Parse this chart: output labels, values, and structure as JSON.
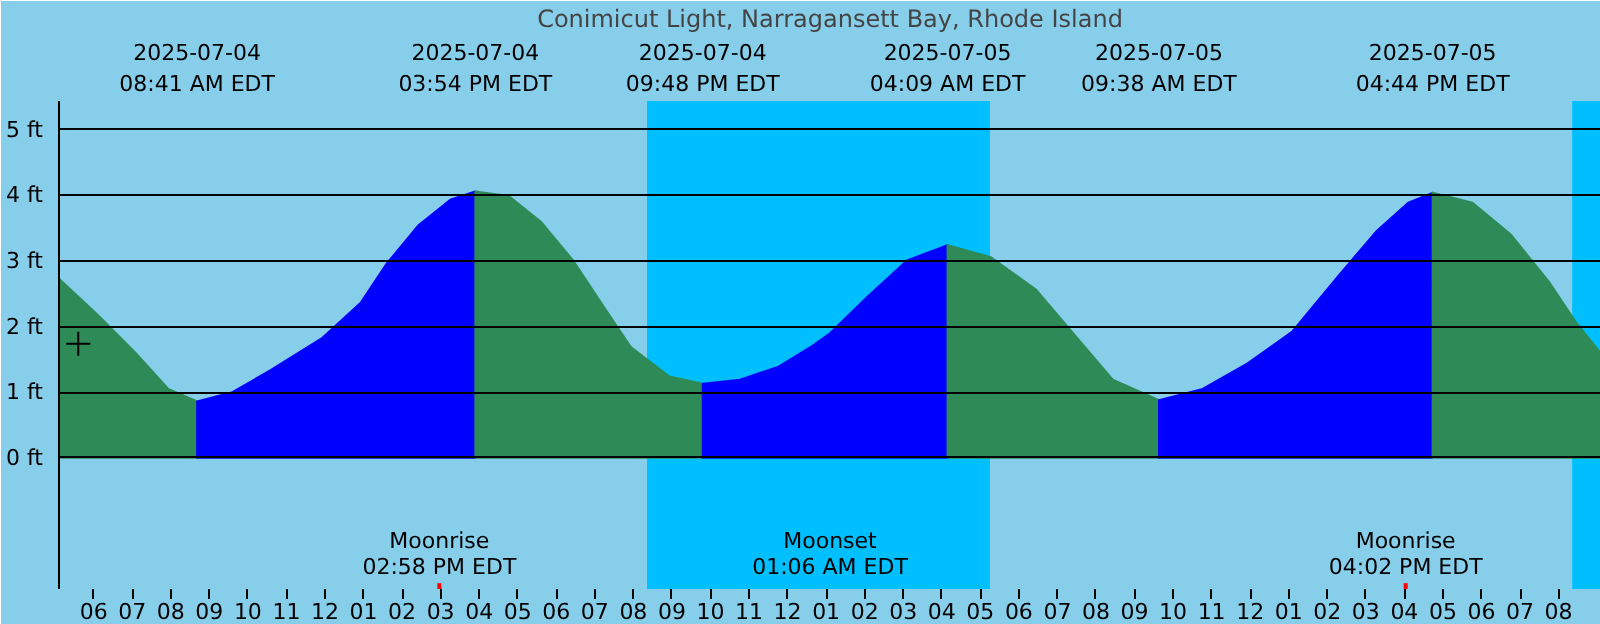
{
  "chart_data": {
    "type": "area",
    "title": "Conimicut Light, Narragansett Bay, Rhode Island",
    "xlim": [
      "2025-07-04T05:06",
      "2025-07-05T21:06"
    ],
    "ylim": [
      -2,
      5.44
    ],
    "x2lim": [
      "2025-07-04T05:06",
      "2025-07-05T21:06"
    ],
    "x2ticks": [
      {
        "value": "2025-07-04T08:41",
        "label": "2025-07-04\n08:41 AM EDT"
      },
      {
        "value": "2025-07-04T15:54",
        "label": "2025-07-04\n03:54 PM EDT"
      },
      {
        "value": "2025-07-04T21:48",
        "label": "2025-07-04\n09:48 PM EDT"
      },
      {
        "value": "2025-07-05T04:09",
        "label": "2025-07-05\n04:09 AM EDT"
      },
      {
        "value": "2025-07-05T09:38",
        "label": "2025-07-05\n09:38 AM EDT"
      },
      {
        "value": "2025-07-05T16:44",
        "label": "2025-07-05\n04:44 PM EDT"
      }
    ],
    "xticks": [
      {
        "value": "2025-07-04T06:00",
        "label": "06"
      },
      {
        "value": "2025-07-04T07:00",
        "label": "07"
      },
      {
        "value": "2025-07-04T08:00",
        "label": "08"
      },
      {
        "value": "2025-07-04T09:00",
        "label": "09"
      },
      {
        "value": "2025-07-04T10:00",
        "label": "10"
      },
      {
        "value": "2025-07-04T11:00",
        "label": "11"
      },
      {
        "value": "2025-07-04T12:00",
        "label": "12"
      },
      {
        "value": "2025-07-04T13:00",
        "label": "01"
      },
      {
        "value": "2025-07-04T14:00",
        "label": "02"
      },
      {
        "value": "2025-07-04T15:00",
        "label": "03"
      },
      {
        "value": "2025-07-04T16:00",
        "label": "04"
      },
      {
        "value": "2025-07-04T17:00",
        "label": "05"
      },
      {
        "value": "2025-07-04T18:00",
        "label": "06"
      },
      {
        "value": "2025-07-04T19:00",
        "label": "07"
      },
      {
        "value": "2025-07-04T20:00",
        "label": "08"
      },
      {
        "value": "2025-07-04T21:00",
        "label": "09"
      },
      {
        "value": "2025-07-04T22:00",
        "label": "10"
      },
      {
        "value": "2025-07-04T23:00",
        "label": "11"
      },
      {
        "value": "2025-07-05T00:00",
        "label": "12"
      },
      {
        "value": "2025-07-05T01:00",
        "label": "01"
      },
      {
        "value": "2025-07-05T02:00",
        "label": "02"
      },
      {
        "value": "2025-07-05T03:00",
        "label": "03"
      },
      {
        "value": "2025-07-05T04:00",
        "label": "04"
      },
      {
        "value": "2025-07-05T05:00",
        "label": "05"
      },
      {
        "value": "2025-07-05T06:00",
        "label": "06"
      },
      {
        "value": "2025-07-05T07:00",
        "label": "07"
      },
      {
        "value": "2025-07-05T08:00",
        "label": "08"
      },
      {
        "value": "2025-07-05T09:00",
        "label": "09"
      },
      {
        "value": "2025-07-05T10:00",
        "label": "10"
      },
      {
        "value": "2025-07-05T11:00",
        "label": "11"
      },
      {
        "value": "2025-07-05T12:00",
        "label": "12"
      },
      {
        "value": "2025-07-05T13:00",
        "label": "01"
      },
      {
        "value": "2025-07-05T14:00",
        "label": "02"
      },
      {
        "value": "2025-07-05T15:00",
        "label": "03"
      },
      {
        "value": "2025-07-05T16:00",
        "label": "04"
      },
      {
        "value": "2025-07-05T17:00",
        "label": "05"
      },
      {
        "value": "2025-07-05T18:00",
        "label": "06"
      },
      {
        "value": "2025-07-05T19:00",
        "label": "07"
      },
      {
        "value": "2025-07-05T20:00",
        "label": "08"
      }
    ],
    "yticks": [
      {
        "value": 0,
        "label": "0 ft"
      },
      {
        "value": 1,
        "label": "1 ft"
      },
      {
        "value": 2,
        "label": "2 ft"
      },
      {
        "value": 3,
        "label": "3 ft"
      },
      {
        "value": 4,
        "label": "4 ft"
      },
      {
        "value": 5,
        "label": "5 ft"
      }
    ],
    "grid": "y",
    "bands": [
      {
        "axis": "x",
        "from": "2025-07-04T05:06",
        "to": "2025-07-04T20:21",
        "color": "#87ceeb"
      },
      {
        "axis": "x",
        "from": "2025-07-04T20:21",
        "to": "2025-07-05T05:15",
        "color": "#00bfff"
      },
      {
        "axis": "x",
        "from": "2025-07-05T05:15",
        "to": "2025-07-05T20:21",
        "color": "#87ceeb"
      },
      {
        "axis": "x",
        "from": "2025-07-05T20:21",
        "to": "2025-07-05T21:06",
        "color": "#00bfff"
      }
    ],
    "series": [
      {
        "color": "#2e8b57",
        "x": [
          "2025-07-04T05:06",
          "2025-07-04T06:06",
          "2025-07-04T07:06",
          "2025-07-04T07:56",
          "2025-07-04T08:41"
        ],
        "values": [
          2.73,
          2.18,
          1.59,
          1.05,
          0.86
        ]
      },
      {
        "color": "#0000ff",
        "x": [
          "2025-07-04T08:41",
          "2025-07-04T09:36",
          "2025-07-04T10:36",
          "2025-07-04T11:56",
          "2025-07-04T12:56",
          "2025-07-04T13:36",
          "2025-07-04T14:26",
          "2025-07-04T15:16",
          "2025-07-04T15:54"
        ],
        "values": [
          0.86,
          1.0,
          1.34,
          1.83,
          2.37,
          2.96,
          3.55,
          3.94,
          4.06
        ]
      },
      {
        "color": "#2e8b57",
        "x": [
          "2025-07-04T15:54",
          "2025-07-04T16:46",
          "2025-07-04T17:36",
          "2025-07-04T18:26",
          "2025-07-04T19:16",
          "2025-07-04T19:56",
          "2025-07-04T20:56",
          "2025-07-04T21:48"
        ],
        "values": [
          4.06,
          3.99,
          3.6,
          3.01,
          2.27,
          1.69,
          1.24,
          1.13
        ]
      },
      {
        "color": "#0000ff",
        "x": [
          "2025-07-04T21:48",
          "2025-07-04T22:46",
          "2025-07-04T23:46",
          "2025-07-05T00:36",
          "2025-07-05T01:06",
          "2025-07-05T02:06",
          "2025-07-05T03:06",
          "2025-07-05T04:09"
        ],
        "values": [
          1.13,
          1.19,
          1.39,
          1.69,
          1.9,
          2.47,
          3.01,
          3.24
        ]
      },
      {
        "color": "#2e8b57",
        "x": [
          "2025-07-05T04:09",
          "2025-07-05T05:16",
          "2025-07-05T06:26",
          "2025-07-05T07:26",
          "2025-07-05T08:26",
          "2025-07-05T09:38"
        ],
        "values": [
          3.24,
          3.06,
          2.57,
          1.88,
          1.19,
          0.88
        ]
      },
      {
        "color": "#0000ff",
        "x": [
          "2025-07-05T09:38",
          "2025-07-05T10:46",
          "2025-07-05T11:56",
          "2025-07-05T13:06",
          "2025-07-05T14:16",
          "2025-07-05T15:16",
          "2025-07-05T16:06",
          "2025-07-05T16:44"
        ],
        "values": [
          0.88,
          1.05,
          1.44,
          1.93,
          2.76,
          3.45,
          3.89,
          4.04
        ]
      },
      {
        "color": "#2e8b57",
        "x": [
          "2025-07-05T16:44",
          "2025-07-05T17:46",
          "2025-07-05T18:46",
          "2025-07-05T19:46",
          "2025-07-05T20:26",
          "2025-07-05T21:06"
        ],
        "values": [
          4.04,
          3.89,
          3.4,
          2.67,
          2.08,
          1.59
        ]
      },
      {
        "type": "scatter",
        "marker": "cross",
        "color": "#000000",
        "x": [
          "2025-07-04T05:36"
        ],
        "values": [
          1.74
        ]
      }
    ],
    "ref_lines": [
      {
        "axis": "x",
        "value": "2025-07-04T14:58",
        "label": "Moonrise\n02:58 PM EDT",
        "color": "#ff0000"
      },
      {
        "axis": "x",
        "value": "2025-07-05T01:06",
        "label": "Moonset\n01:06 AM EDT"
      },
      {
        "axis": "x",
        "value": "2025-07-05T16:02",
        "label": "Moonrise\n04:02 PM EDT",
        "color": "#ff0000"
      }
    ]
  }
}
